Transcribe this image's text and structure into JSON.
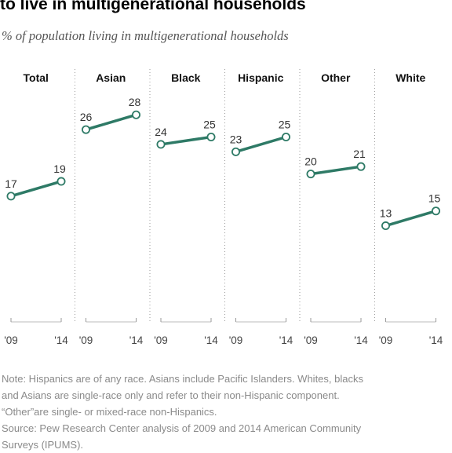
{
  "title": "to live in multigenerational households",
  "subtitle": "% of population living in multigenerational households",
  "chart_data": {
    "type": "line",
    "x": [
      "'09",
      "'14"
    ],
    "ylim": [
      0,
      30
    ],
    "series": [
      {
        "name": "Total",
        "values": [
          17,
          19
        ]
      },
      {
        "name": "Asian",
        "values": [
          26,
          28
        ]
      },
      {
        "name": "Black",
        "values": [
          24,
          25
        ]
      },
      {
        "name": "Hispanic",
        "values": [
          23,
          25
        ]
      },
      {
        "name": "Other",
        "values": [
          20,
          21
        ]
      },
      {
        "name": "White",
        "values": [
          13,
          15
        ]
      }
    ],
    "line_color": "#2e7a66"
  },
  "notes": [
    "Note: Hispanics are of any race. Asians include Pacific Islanders. Whites, blacks",
    "and Asians are single-race only and refer to their non-Hispanic component.",
    "“Other”are single- or mixed-race non-Hispanics.",
    "Source: Pew Research Center analysis of 2009 and 2014 American Community",
    "Surveys (IPUMS)."
  ]
}
